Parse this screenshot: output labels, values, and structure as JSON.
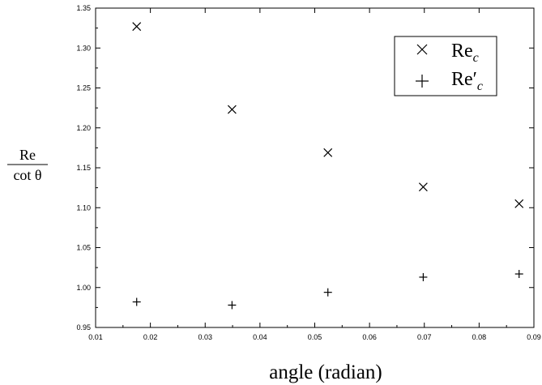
{
  "chart_data": {
    "type": "scatter",
    "xlabel": "angle (radian)",
    "ylabel": {
      "numerator": "Re",
      "denominator": "cot θ"
    },
    "xlim": [
      0.01,
      0.09
    ],
    "ylim": [
      0.95,
      1.35
    ],
    "xticks": [
      "0.01",
      "0.02",
      "0.03",
      "0.04",
      "0.05",
      "0.06",
      "0.07",
      "0.08",
      "0.09"
    ],
    "yticks": [
      "0.95",
      "1.00",
      "1.05",
      "1.10",
      "1.15",
      "1.20",
      "1.25",
      "1.30",
      "1.35"
    ],
    "grid": false,
    "legend_position": "top-right",
    "series": [
      {
        "name": "Re_c",
        "label_base": "Re",
        "label_sub": "c",
        "marker": "x",
        "x": [
          0.0175,
          0.0349,
          0.0524,
          0.0698,
          0.0873
        ],
        "y": [
          1.327,
          1.223,
          1.169,
          1.126,
          1.105
        ]
      },
      {
        "name": "Re'_c",
        "label_base": "Re′",
        "label_sub": "c",
        "marker": "+",
        "x": [
          0.0175,
          0.0349,
          0.0524,
          0.0698,
          0.0873
        ],
        "y": [
          0.982,
          0.978,
          0.994,
          1.013,
          1.017
        ]
      }
    ]
  }
}
